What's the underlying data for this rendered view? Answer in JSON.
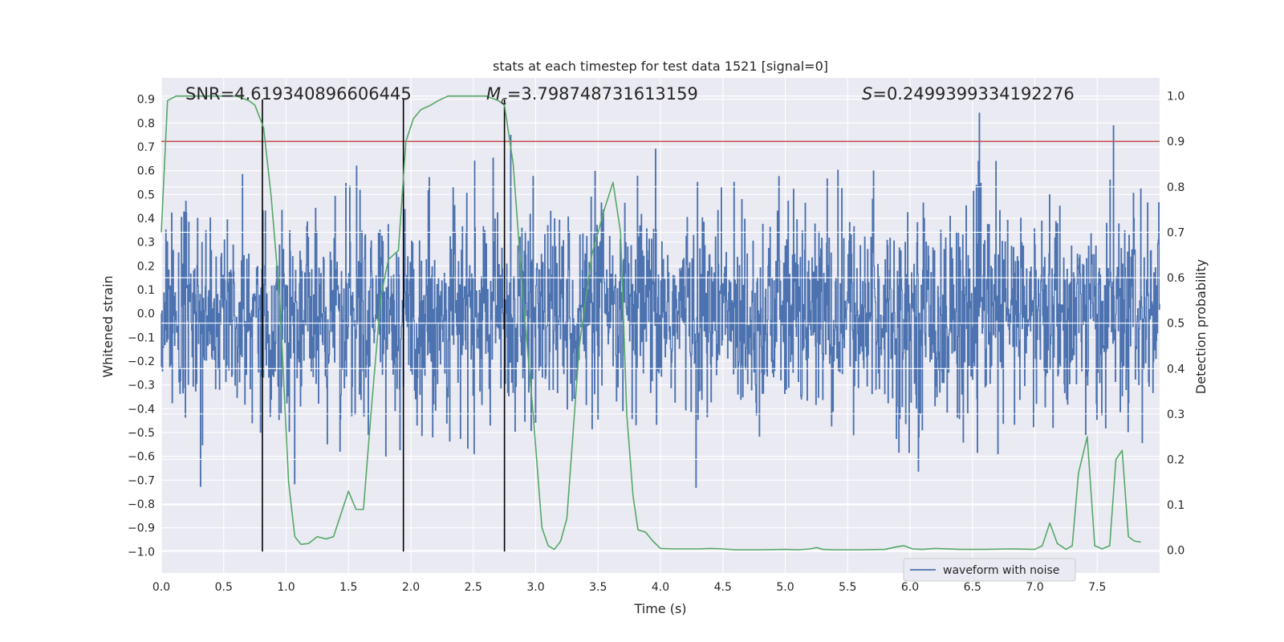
{
  "chart_data": {
    "type": "line",
    "title": "stats at each timestep for test data 1521 [signal=0]",
    "xlabel": "Time (s)",
    "ylabel": "Whitened strain",
    "y2label": "Detection probability",
    "xlim": [
      0.0,
      8.0
    ],
    "ylim": [
      -1.09,
      0.99
    ],
    "y2lim": [
      -0.05,
      1.04
    ],
    "xticks": [
      0.0,
      0.5,
      1.0,
      1.5,
      2.0,
      2.5,
      3.0,
      3.5,
      4.0,
      4.5,
      5.0,
      5.5,
      6.0,
      6.5,
      7.0,
      7.5
    ],
    "xtick_labels": [
      "0.0",
      "0.5",
      "1.0",
      "1.5",
      "2.0",
      "2.5",
      "3.0",
      "3.5",
      "4.0",
      "4.5",
      "5.0",
      "5.5",
      "6.0",
      "6.5",
      "7.0",
      "7.5"
    ],
    "yticks": [
      0.9,
      0.8,
      0.7,
      0.6,
      0.5,
      0.4,
      0.3,
      0.2,
      0.1,
      0.0,
      -0.1,
      -0.2,
      -0.3,
      -0.4,
      -0.5,
      -0.6,
      -0.7,
      -0.8,
      -0.9,
      -1.0
    ],
    "ytick_labels": [
      "0.9",
      "0.8",
      "0.7",
      "0.6",
      "0.5",
      "0.4",
      "0.3",
      "0.2",
      "0.1",
      "0.0",
      "−0.1",
      "−0.2",
      "−0.3",
      "−0.4",
      "−0.5",
      "−0.6",
      "−0.7",
      "−0.8",
      "−0.9",
      "−1.0"
    ],
    "y2ticks": [
      1.0,
      0.9,
      0.8,
      0.7,
      0.6,
      0.5,
      0.4,
      0.3,
      0.2,
      0.1,
      0.0
    ],
    "y2tick_labels": [
      "1.0",
      "0.9",
      "0.8",
      "0.7",
      "0.6",
      "0.5",
      "0.4",
      "0.3",
      "0.2",
      "0.1",
      "0.0"
    ],
    "annotations": {
      "snr": "SNR=4.619340896606445",
      "mc_symbol": "M",
      "mc_sub": "c",
      "mc_value": "=3.798748731613159",
      "s_symbol": "S",
      "s_value": "=0.2499399334192276"
    },
    "legend": {
      "label": "waveform with noise",
      "position": "lower-right"
    },
    "threshold": {
      "value": 0.9,
      "axis": "right",
      "color": "#c44e52"
    },
    "vertical_lines_x": [
      0.81,
      1.94,
      2.75
    ],
    "waveform": {
      "name": "waveform with noise",
      "color": "#4c72b0",
      "n_samples": 2048,
      "noise_sigma": 0.22,
      "range_x": [
        0.0,
        8.0
      ]
    },
    "series": [
      {
        "name": "detection probability",
        "axis": "right",
        "color": "#55a868",
        "x": [
          0.0,
          0.05,
          0.12,
          0.2,
          0.3,
          0.4,
          0.5,
          0.6,
          0.7,
          0.75,
          0.82,
          0.88,
          0.95,
          1.02,
          1.07,
          1.12,
          1.18,
          1.25,
          1.32,
          1.38,
          1.44,
          1.5,
          1.56,
          1.62,
          1.68,
          1.76,
          1.82,
          1.9,
          1.96,
          2.02,
          2.08,
          2.16,
          2.22,
          2.3,
          2.4,
          2.5,
          2.6,
          2.7,
          2.75,
          2.82,
          2.9,
          2.98,
          3.05,
          3.1,
          3.15,
          3.2,
          3.25,
          3.35,
          3.45,
          3.55,
          3.62,
          3.68,
          3.73,
          3.78,
          3.82,
          3.88,
          3.94,
          4.0,
          4.1,
          4.3,
          4.4,
          4.5,
          4.6,
          4.8,
          5.0,
          5.1,
          5.2,
          5.25,
          5.3,
          5.4,
          5.6,
          5.8,
          5.9,
          5.95,
          6.02,
          6.1,
          6.2,
          6.4,
          6.6,
          6.8,
          7.0,
          7.06,
          7.12,
          7.18,
          7.25,
          7.3,
          7.35,
          7.42,
          7.48,
          7.54,
          7.6,
          7.65,
          7.7,
          7.75,
          7.8,
          7.85
        ],
        "values": [
          0.7,
          0.99,
          1.0,
          1.0,
          1.0,
          1.0,
          1.0,
          1.0,
          0.99,
          0.98,
          0.93,
          0.78,
          0.55,
          0.15,
          0.03,
          0.013,
          0.015,
          0.03,
          0.025,
          0.03,
          0.08,
          0.13,
          0.09,
          0.09,
          0.3,
          0.56,
          0.64,
          0.66,
          0.9,
          0.95,
          0.97,
          0.98,
          0.99,
          1.0,
          1.0,
          1.0,
          1.0,
          0.99,
          0.98,
          0.85,
          0.55,
          0.3,
          0.05,
          0.01,
          0.002,
          0.02,
          0.07,
          0.45,
          0.65,
          0.75,
          0.81,
          0.7,
          0.3,
          0.12,
          0.045,
          0.04,
          0.02,
          0.004,
          0.003,
          0.003,
          0.004,
          0.003,
          0.001,
          0.001,
          0.002,
          0.001,
          0.003,
          0.006,
          0.002,
          0.001,
          0.001,
          0.002,
          0.008,
          0.01,
          0.003,
          0.002,
          0.004,
          0.002,
          0.002,
          0.003,
          0.002,
          0.01,
          0.06,
          0.015,
          0.002,
          0.01,
          0.17,
          0.25,
          0.01,
          0.003,
          0.01,
          0.2,
          0.22,
          0.03,
          0.02,
          0.018
        ]
      }
    ]
  },
  "colors": {
    "plot_bg": "#eaeaf2",
    "grid": "#ffffff",
    "text": "#262626",
    "vertical_line": "#000000"
  }
}
